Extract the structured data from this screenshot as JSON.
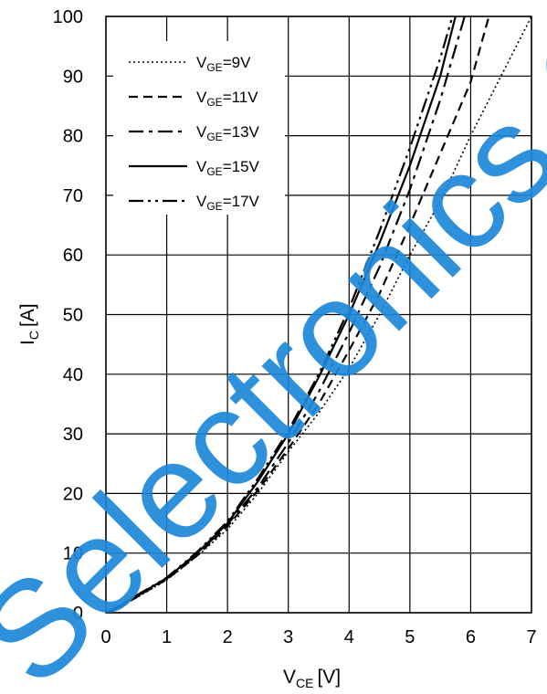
{
  "chart_data": {
    "type": "line",
    "xlabel_main": "V",
    "xlabel_sub": "CE",
    "xlabel_unit": "[V]",
    "ylabel_main": "I",
    "ylabel_sub": "C",
    "ylabel_unit": "[A]",
    "xlim": [
      0,
      7
    ],
    "ylim": [
      0,
      100
    ],
    "xticks": [
      0,
      1,
      2,
      3,
      4,
      5,
      6,
      7
    ],
    "yticks": [
      0,
      10,
      20,
      30,
      40,
      50,
      60,
      70,
      80,
      90,
      100
    ],
    "grid": true,
    "legend_position": "top-left",
    "series": [
      {
        "name": "V_GE=9V",
        "label_main": "V",
        "label_sub": "GE",
        "label_rest": "=9V",
        "dash": "dotted",
        "points": [
          [
            0,
            0
          ],
          [
            0.2,
            0.8
          ],
          [
            0.5,
            2.5
          ],
          [
            1,
            5.5
          ],
          [
            1.5,
            9.5
          ],
          [
            2,
            14
          ],
          [
            2.5,
            20
          ],
          [
            3,
            27
          ],
          [
            3.5,
            33.5
          ],
          [
            4,
            41
          ],
          [
            4.5,
            50
          ],
          [
            5,
            60
          ],
          [
            5.5,
            69
          ],
          [
            6,
            80
          ],
          [
            6.5,
            90
          ],
          [
            7,
            100
          ]
        ]
      },
      {
        "name": "V_GE=11V",
        "label_main": "V",
        "label_sub": "GE",
        "label_rest": "=11V",
        "dash": "dashed",
        "points": [
          [
            0,
            0
          ],
          [
            0.2,
            0.8
          ],
          [
            0.5,
            2.6
          ],
          [
            1,
            5.6
          ],
          [
            1.5,
            9.6
          ],
          [
            2,
            14.5
          ],
          [
            2.5,
            20.5
          ],
          [
            3,
            27.5
          ],
          [
            3.5,
            35
          ],
          [
            4,
            44
          ],
          [
            4.5,
            53.5
          ],
          [
            5,
            65
          ],
          [
            5.5,
            77
          ],
          [
            6,
            89
          ],
          [
            6.3,
            100
          ]
        ]
      },
      {
        "name": "V_GE=13V",
        "label_main": "V",
        "label_sub": "GE",
        "label_rest": "=13V",
        "dash": "dash-dot",
        "points": [
          [
            0,
            0
          ],
          [
            0.2,
            0.9
          ],
          [
            0.5,
            2.7
          ],
          [
            1,
            5.7
          ],
          [
            1.5,
            9.8
          ],
          [
            2,
            14.8
          ],
          [
            2.5,
            21
          ],
          [
            3,
            28.5
          ],
          [
            3.5,
            37
          ],
          [
            4,
            47
          ],
          [
            4.5,
            58
          ],
          [
            5,
            71
          ],
          [
            5.5,
            86
          ],
          [
            5.9,
            100
          ]
        ]
      },
      {
        "name": "V_GE=15V",
        "label_main": "V",
        "label_sub": "GE",
        "label_rest": "=15V",
        "dash": "solid",
        "points": [
          [
            0,
            0
          ],
          [
            0.2,
            1
          ],
          [
            0.5,
            2.8
          ],
          [
            1,
            5.8
          ],
          [
            1.5,
            10
          ],
          [
            2,
            15
          ],
          [
            2.5,
            22
          ],
          [
            3,
            30
          ],
          [
            3.5,
            39.5
          ],
          [
            4,
            50
          ],
          [
            4.5,
            62
          ],
          [
            5,
            75
          ],
          [
            5.5,
            90
          ],
          [
            5.75,
            100
          ]
        ]
      },
      {
        "name": "V_GE=17V",
        "label_main": "V",
        "label_sub": "GE",
        "label_rest": "=17V",
        "dash": "dash-dot-dot",
        "points": [
          [
            0,
            0
          ],
          [
            0.2,
            1
          ],
          [
            0.5,
            2.9
          ],
          [
            1,
            5.9
          ],
          [
            1.5,
            10.2
          ],
          [
            2,
            15.3
          ],
          [
            2.5,
            22.5
          ],
          [
            3,
            30.5
          ],
          [
            3.5,
            40
          ],
          [
            4,
            51
          ],
          [
            4.5,
            64
          ],
          [
            5,
            78
          ],
          [
            5.5,
            93
          ],
          [
            5.7,
            100
          ]
        ]
      }
    ]
  },
  "watermark": {
    "text": "Selectronics Co. Ltd",
    "color": "#1e88d8"
  }
}
